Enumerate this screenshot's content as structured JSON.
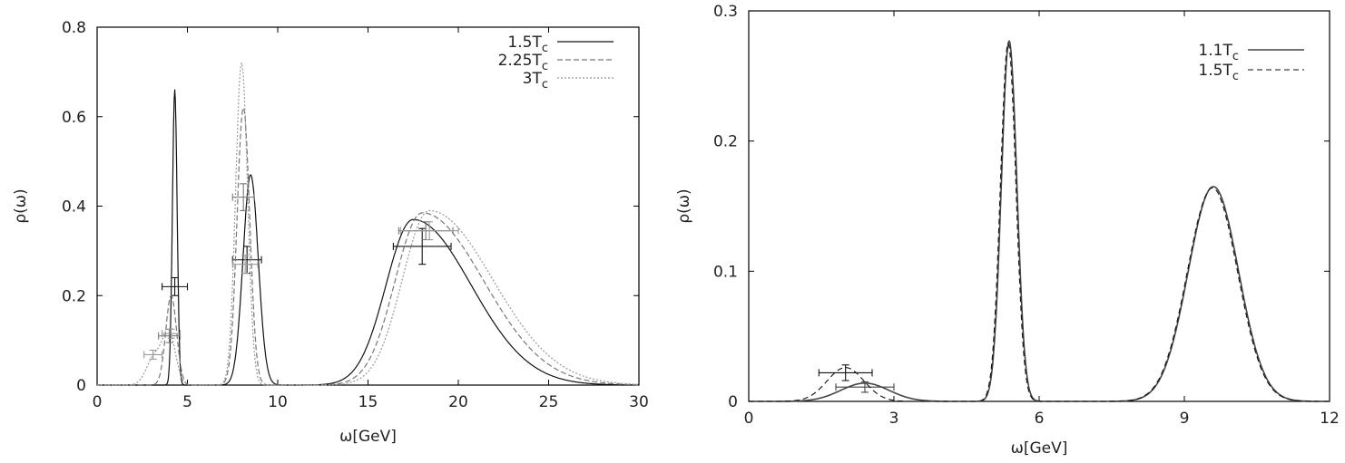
{
  "chart_data": [
    {
      "type": "line",
      "title": "",
      "xlabel": "ω[GeV]",
      "ylabel": "ρ(ω)",
      "xlim": [
        0,
        30
      ],
      "ylim": [
        0,
        0.8
      ],
      "xticks": [
        0,
        5,
        10,
        15,
        20,
        25,
        30
      ],
      "yticks": [
        0,
        0.2,
        0.4,
        0.6,
        0.8
      ],
      "xtick_labels": [
        "0",
        "5",
        "10",
        "15",
        "20",
        "25",
        "30"
      ],
      "ytick_labels": [
        "0",
        "0.2",
        "0.4",
        "0.6",
        "0.8"
      ],
      "legend_position": "top-right",
      "grid": false,
      "series": [
        {
          "name": "1.5Tc",
          "legend_main": "1.5T",
          "legend_sub": "c",
          "color": "#111111",
          "dash": "",
          "peaks": [
            {
              "x0": 4.3,
              "amp": 0.66,
              "w": 0.13
            },
            {
              "x0": 8.5,
              "amp": 0.47,
              "w": 0.42
            },
            {
              "x0": 17.5,
              "amp": 0.37,
              "w": 1.5,
              "tail": 3.2
            }
          ],
          "errors": [
            {
              "x": 4.3,
              "y": 0.22,
              "xerr": 0.7,
              "yerr": 0.02
            },
            {
              "x": 8.3,
              "y": 0.28,
              "xerr": 0.8,
              "yerr": 0.03
            },
            {
              "x": 18.0,
              "y": 0.31,
              "xerr": 1.6,
              "yerr": 0.04
            }
          ]
        },
        {
          "name": "2.25Tc",
          "legend_main": "2.25T",
          "legend_sub": "c",
          "color": "#777777",
          "dash": "6,3",
          "peaks": [
            {
              "x0": 4.1,
              "amp": 0.2,
              "w": 0.3
            },
            {
              "x0": 8.1,
              "amp": 0.62,
              "w": 0.35
            },
            {
              "x0": 18.0,
              "amp": 0.385,
              "w": 1.5,
              "tail": 3.4
            }
          ],
          "errors": [
            {
              "x": 4.0,
              "y": 0.11,
              "xerr": 0.6,
              "yerr": 0.015
            },
            {
              "x": 8.1,
              "y": 0.42,
              "xerr": 0.6,
              "yerr": 0.03
            },
            {
              "x": 18.2,
              "y": 0.345,
              "xerr": 1.5,
              "yerr": 0.02
            }
          ]
        },
        {
          "name": "3Tc",
          "legend_main": "3T",
          "legend_sub": "c",
          "color": "#999999",
          "dash": "2,2",
          "peaks": [
            {
              "x0": 3.2,
              "amp": 0.065,
              "w": 0.45
            },
            {
              "x0": 4.0,
              "amp": 0.11,
              "w": 0.35
            },
            {
              "x0": 8.0,
              "amp": 0.72,
              "w": 0.33
            },
            {
              "x0": 18.4,
              "amp": 0.39,
              "w": 1.5,
              "tail": 3.5
            }
          ],
          "errors": [
            {
              "x": 3.1,
              "y": 0.068,
              "xerr": 0.5,
              "yerr": 0.01
            },
            {
              "x": 4.1,
              "y": 0.115,
              "xerr": 0.5,
              "yerr": 0.01
            },
            {
              "x": 8.2,
              "y": 0.27,
              "xerr": 0.7,
              "yerr": 0.02
            },
            {
              "x": 18.4,
              "y": 0.345,
              "xerr": 1.6,
              "yerr": 0.02
            }
          ]
        }
      ]
    },
    {
      "type": "line",
      "title": "",
      "xlabel": "ω[GeV]",
      "ylabel": "ρ(ω)",
      "xlim": [
        0,
        12
      ],
      "ylim": [
        0,
        0.3
      ],
      "xticks": [
        0,
        3,
        6,
        9,
        12
      ],
      "yticks": [
        0,
        0.1,
        0.2,
        0.3
      ],
      "xtick_labels": [
        "0",
        "3",
        "6",
        "9",
        "12"
      ],
      "ytick_labels": [
        "0",
        "0.1",
        "0.2",
        "0.3"
      ],
      "legend_position": "top-right",
      "grid": false,
      "series": [
        {
          "name": "1.1Tc",
          "legend_main": "1.1T",
          "legend_sub": "c",
          "color": "#444444",
          "dash": "",
          "width": 1.6,
          "peaks": [
            {
              "x0": 2.4,
              "amp": 0.014,
              "w": 0.5
            },
            {
              "x0": 5.38,
              "amp": 0.277,
              "w": 0.16
            },
            {
              "x0": 9.6,
              "amp": 0.165,
              "w": 0.52
            }
          ],
          "errors": [
            {
              "x": 2.4,
              "y": 0.011,
              "xerr": 0.6,
              "yerr": 0.004
            }
          ]
        },
        {
          "name": "1.5Tc",
          "legend_main": "1.5T",
          "legend_sub": "c",
          "color": "#111111",
          "dash": "6,4",
          "width": 1.1,
          "peaks": [
            {
              "x0": 2.0,
              "amp": 0.026,
              "w": 0.38
            },
            {
              "x0": 5.36,
              "amp": 0.275,
              "w": 0.16
            },
            {
              "x0": 9.58,
              "amp": 0.164,
              "w": 0.52
            }
          ],
          "errors": [
            {
              "x": 2.0,
              "y": 0.022,
              "xerr": 0.55,
              "yerr": 0.006
            }
          ]
        }
      ]
    }
  ]
}
